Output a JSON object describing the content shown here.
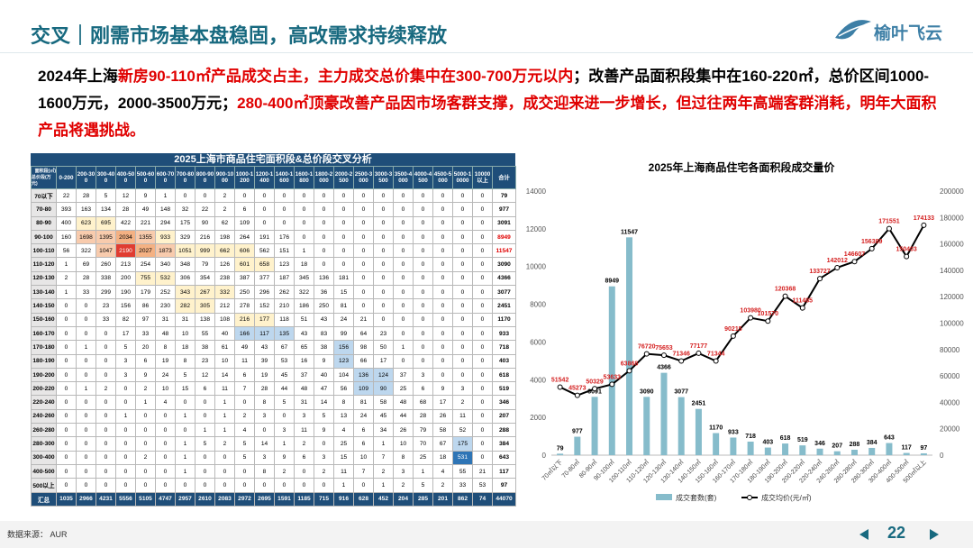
{
  "header": {
    "title": "交叉｜刚需市场基本盘稳固，高改需求持续释放",
    "logo": "榆叶飞云"
  },
  "summary": {
    "segments": [
      {
        "text": "2024年上海",
        "color": "#000000"
      },
      {
        "text": "新房90-110㎡产品成交占主，主力成交总价集中在300-700万元以内",
        "color": "#e00000"
      },
      {
        "text": "；改善产品面积段集中在160-220㎡，总价区间1000-1600万元，2000-3500万元；",
        "color": "#000000"
      },
      {
        "text": "280-400㎡顶豪改善产品因市场客群支撑，成交迎来进一步增长，但过往两年高端客群消耗，明年大面积产品将遇挑战。",
        "color": "#e00000"
      }
    ]
  },
  "table": {
    "title": "2025上海市商品住宅面积段&总价段交叉分析",
    "corner_top": "面积段(㎡)",
    "corner_bottom": "总价段(万元)",
    "columns": [
      "0-200",
      "200-300",
      "300-400",
      "400-500",
      "500-600",
      "600-700",
      "700-800",
      "800-900",
      "900-1000",
      "1000-1200",
      "1200-1400",
      "1400-1600",
      "1600-1800",
      "1800-2000",
      "2000-2500",
      "2500-3000",
      "3000-3500",
      "3500-4000",
      "4000-4500",
      "4500-5000",
      "5000-10000",
      "10000以上",
      "合计"
    ],
    "rows": [
      [
        "70以下",
        22,
        28,
        5,
        12,
        9,
        1,
        0,
        0,
        2,
        0,
        0,
        0,
        0,
        0,
        0,
        0,
        0,
        0,
        0,
        0,
        0,
        0,
        79
      ],
      [
        "70-80",
        393,
        163,
        134,
        28,
        49,
        148,
        32,
        22,
        2,
        6,
        0,
        0,
        0,
        0,
        0,
        0,
        0,
        0,
        0,
        0,
        0,
        0,
        977
      ],
      [
        "80-90",
        400,
        623,
        695,
        422,
        221,
        294,
        175,
        90,
        62,
        109,
        0,
        0,
        0,
        0,
        0,
        0,
        0,
        0,
        0,
        0,
        0,
        0,
        3091
      ],
      [
        "90-100",
        160,
        1698,
        1395,
        2034,
        1355,
        933,
        329,
        216,
        198,
        264,
        191,
        176,
        0,
        0,
        0,
        0,
        0,
        0,
        0,
        0,
        0,
        0,
        8949
      ],
      [
        "100-110",
        56,
        322,
        1047,
        2190,
        2027,
        1873,
        1051,
        999,
        662,
        606,
        562,
        151,
        1,
        0,
        0,
        0,
        0,
        0,
        0,
        0,
        0,
        0,
        11547
      ],
      [
        "110-120",
        1,
        69,
        260,
        213,
        254,
        340,
        348,
        79,
        126,
        601,
        658,
        123,
        18,
        0,
        0,
        0,
        0,
        0,
        0,
        0,
        0,
        0,
        3090
      ],
      [
        "120-130",
        2,
        28,
        338,
        200,
        755,
        532,
        306,
        354,
        238,
        387,
        377,
        187,
        345,
        136,
        181,
        0,
        0,
        0,
        0,
        0,
        0,
        0,
        4366
      ],
      [
        "130-140",
        1,
        33,
        299,
        190,
        179,
        252,
        343,
        267,
        332,
        250,
        296,
        262,
        322,
        36,
        15,
        0,
        0,
        0,
        0,
        0,
        0,
        0,
        3077
      ],
      [
        "140-150",
        0,
        0,
        23,
        156,
        86,
        230,
        282,
        305,
        212,
        278,
        152,
        210,
        186,
        250,
        81,
        0,
        0,
        0,
        0,
        0,
        0,
        0,
        2451
      ],
      [
        "150-160",
        0,
        0,
        33,
        82,
        97,
        31,
        31,
        138,
        108,
        216,
        177,
        118,
        51,
        43,
        24,
        21,
        0,
        0,
        0,
        0,
        0,
        0,
        1170
      ],
      [
        "160-170",
        0,
        0,
        0,
        17,
        33,
        48,
        10,
        55,
        40,
        166,
        117,
        135,
        43,
        83,
        99,
        64,
        23,
        0,
        0,
        0,
        0,
        0,
        933
      ],
      [
        "170-180",
        0,
        1,
        0,
        5,
        20,
        8,
        18,
        38,
        61,
        49,
        43,
        67,
        65,
        38,
        156,
        98,
        50,
        1,
        0,
        0,
        0,
        0,
        718
      ],
      [
        "180-190",
        0,
        0,
        0,
        3,
        6,
        19,
        8,
        23,
        10,
        11,
        39,
        53,
        16,
        9,
        123,
        66,
        17,
        0,
        0,
        0,
        0,
        0,
        403
      ],
      [
        "190-200",
        0,
        0,
        0,
        3,
        9,
        24,
        5,
        12,
        14,
        6,
        19,
        45,
        37,
        40,
        104,
        136,
        124,
        37,
        3,
        0,
        0,
        0,
        618
      ],
      [
        "200-220",
        0,
        1,
        2,
        0,
        2,
        10,
        15,
        6,
        11,
        7,
        28,
        44,
        48,
        47,
        56,
        109,
        90,
        25,
        6,
        9,
        3,
        0,
        519
      ],
      [
        "220-240",
        0,
        0,
        0,
        0,
        1,
        4,
        0,
        0,
        1,
        0,
        8,
        5,
        31,
        14,
        8,
        81,
        58,
        48,
        68,
        17,
        2,
        0,
        346
      ],
      [
        "240-260",
        0,
        0,
        0,
        1,
        0,
        0,
        1,
        0,
        1,
        2,
        3,
        0,
        3,
        5,
        13,
        24,
        45,
        44,
        28,
        26,
        11,
        0,
        207
      ],
      [
        "260-280",
        0,
        0,
        0,
        0,
        0,
        0,
        0,
        1,
        1,
        4,
        0,
        3,
        11,
        9,
        4,
        6,
        34,
        26,
        79,
        58,
        52,
        0,
        288
      ],
      [
        "280-300",
        0,
        0,
        0,
        0,
        0,
        0,
        1,
        5,
        2,
        5,
        14,
        1,
        2,
        0,
        25,
        6,
        1,
        10,
        70,
        67,
        175,
        0,
        384
      ],
      [
        "300-400",
        0,
        0,
        0,
        0,
        2,
        0,
        1,
        0,
        0,
        5,
        3,
        9,
        6,
        3,
        15,
        10,
        7,
        8,
        25,
        18,
        531,
        0,
        643
      ],
      [
        "400-500",
        0,
        0,
        0,
        0,
        0,
        0,
        1,
        0,
        0,
        0,
        8,
        2,
        0,
        2,
        11,
        7,
        2,
        3,
        1,
        4,
        55,
        21,
        117
      ],
      [
        "500以上",
        0,
        0,
        0,
        0,
        0,
        0,
        0,
        0,
        0,
        0,
        0,
        0,
        0,
        0,
        1,
        0,
        1,
        2,
        5,
        2,
        33,
        53,
        97
      ],
      [
        "汇总",
        1035,
        2966,
        4231,
        5556,
        5105,
        4747,
        2957,
        2610,
        2083,
        2972,
        2695,
        1591,
        1185,
        715,
        916,
        628,
        452,
        204,
        285,
        201,
        862,
        74,
        44070
      ]
    ]
  },
  "chart_data": {
    "type": "bar_line",
    "title": "2025年上海商品住宅各面积段成交量价",
    "categories": [
      "70㎡以下",
      "70-80㎡",
      "80-90㎡",
      "90-100㎡",
      "100-110㎡",
      "110-120㎡",
      "120-130㎡",
      "130-140㎡",
      "140-150㎡",
      "150-160㎡",
      "160-170㎡",
      "170-180㎡",
      "180-190㎡",
      "190-200㎡",
      "200-220㎡",
      "220-240㎡",
      "240-260㎡",
      "260-280㎡",
      "280-300㎡",
      "300-400㎡",
      "400-500㎡",
      "500㎡以上"
    ],
    "series": [
      {
        "name": "成交套数(套)",
        "color": "#86bccb",
        "type": "bar",
        "values": [
          79,
          977,
          3091,
          8949,
          11547,
          3090,
          4366,
          3077,
          2451,
          1170,
          933,
          718,
          403,
          618,
          519,
          346,
          207,
          288,
          384,
          643,
          117,
          97
        ]
      },
      {
        "name": "成交均价(元/㎡)",
        "color": "#000000",
        "type": "line",
        "axis": "y2",
        "label_color": "#d42020",
        "values": [
          51542,
          45273,
          50329,
          53633,
          63868,
          76720,
          75653,
          71346,
          77177,
          71344,
          90215,
          103980,
          101570,
          120368,
          111485,
          133727,
          142012,
          146607,
          156389,
          171551,
          150403,
          174133
        ]
      }
    ],
    "ylim": [
      0,
      14000
    ],
    "yticks": [
      0,
      2000,
      4000,
      6000,
      8000,
      10000,
      12000,
      14000
    ],
    "y2lim": [
      0,
      200000
    ],
    "y2ticks": [
      0,
      20000,
      40000,
      60000,
      80000,
      100000,
      120000,
      140000,
      160000,
      180000,
      200000
    ],
    "grid": false,
    "legend": "bottom"
  },
  "footer": {
    "source": "数据来源： AUR",
    "page": 22
  }
}
